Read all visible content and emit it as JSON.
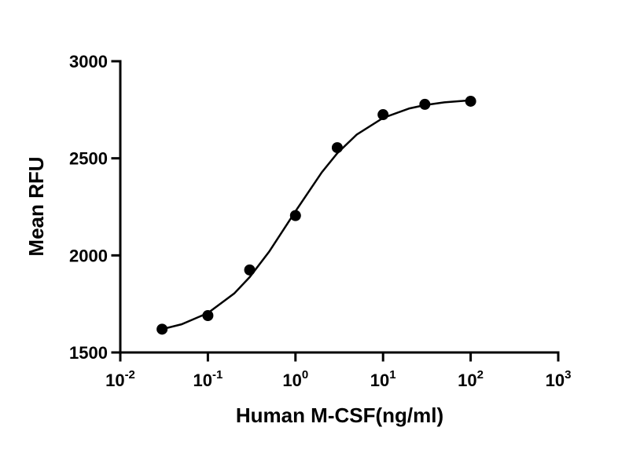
{
  "chart_data": {
    "type": "scatter",
    "x_label": "Human M-CSF(ng/ml)",
    "y_label": "Mean RFU",
    "x_scale": "log",
    "xlim": [
      0.01,
      1000
    ],
    "xticks": [
      {
        "value": 0.01,
        "label": "10",
        "exponent": "-2"
      },
      {
        "value": 0.1,
        "label": "10",
        "exponent": "-1"
      },
      {
        "value": 1,
        "label": "10",
        "exponent": "0"
      },
      {
        "value": 10,
        "label": "10",
        "exponent": "1"
      },
      {
        "value": 100,
        "label": "10",
        "exponent": "2"
      },
      {
        "value": 1000,
        "label": "10",
        "exponent": "3"
      }
    ],
    "ylim": [
      1500,
      3000
    ],
    "yticks": [
      1500,
      2000,
      2500,
      3000
    ],
    "grid": false,
    "series": [
      {
        "kind": "points",
        "color": "#000000",
        "x": [
          0.03,
          0.1,
          0.3,
          1,
          3,
          10,
          30,
          100
        ],
        "values": [
          1620,
          1690,
          1925,
          2205,
          2555,
          2725,
          2778,
          2794
        ]
      },
      {
        "kind": "curve",
        "color": "#000000",
        "x": [
          0.03,
          0.05,
          0.1,
          0.2,
          0.3,
          0.5,
          1,
          2,
          3,
          5,
          10,
          20,
          30,
          50,
          100
        ],
        "values": [
          1620,
          1645,
          1703,
          1804,
          1888,
          2019,
          2227,
          2428,
          2526,
          2622,
          2708,
          2757,
          2774,
          2788,
          2799
        ]
      }
    ]
  }
}
